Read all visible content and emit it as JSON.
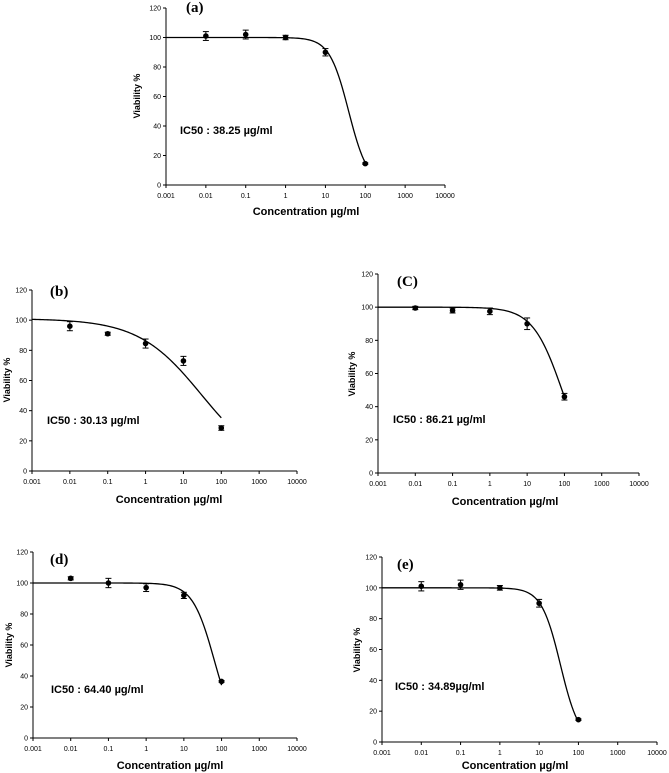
{
  "chart_data": [
    {
      "type": "scatter",
      "panel_label": "(a)",
      "xlabel": "Concentration µg/ml",
      "ylabel": "Viability %",
      "x_scale": "log",
      "xlim": [
        0.001,
        10000
      ],
      "ylim": [
        0,
        120
      ],
      "xticks": [
        "0.001",
        "0.01",
        "0.1",
        "1",
        "10",
        "100",
        "1000",
        "10000"
      ],
      "yticks": [
        "0",
        "20",
        "40",
        "60",
        "80",
        "100",
        "120"
      ],
      "annotation": "IC50 : 38.25 µg/ml",
      "points": [
        {
          "x": 0.01,
          "y": 101,
          "err": 3
        },
        {
          "x": 0.1,
          "y": 102,
          "err": 3
        },
        {
          "x": 1,
          "y": 100,
          "err": 1.5
        },
        {
          "x": 10,
          "y": 90,
          "err": 2.5
        },
        {
          "x": 100,
          "y": 14.5,
          "err": 0.5
        }
      ],
      "fit": {
        "top": 100,
        "bottom": 0,
        "ec50": 38.25,
        "hill": 1.8
      }
    },
    {
      "type": "scatter",
      "panel_label": "(b)",
      "xlabel": "Concentration µg/ml",
      "ylabel": "Viability %",
      "x_scale": "log",
      "xlim": [
        0.001,
        10000
      ],
      "ylim": [
        0,
        120
      ],
      "xticks": [
        "0.001",
        "0.01",
        "0.1",
        "1",
        "10",
        "100",
        "1000",
        "10000"
      ],
      "yticks": [
        "0",
        "20",
        "40",
        "60",
        "80",
        "100",
        "120"
      ],
      "annotation": "IC50 : 30.13 µg/ml",
      "points": [
        {
          "x": 0.01,
          "y": 96,
          "err": 3
        },
        {
          "x": 0.1,
          "y": 91,
          "err": 1
        },
        {
          "x": 1,
          "y": 84.5,
          "err": 3
        },
        {
          "x": 10,
          "y": 73,
          "err": 3
        },
        {
          "x": 100,
          "y": 28.5,
          "err": 1.5
        }
      ],
      "fit": {
        "top": 101,
        "bottom": 0,
        "ec50": 30.13,
        "hill": 0.52
      }
    },
    {
      "type": "scatter",
      "panel_label": "(C)",
      "xlabel": "Concentration µg/ml",
      "ylabel": "Viability %",
      "x_scale": "log",
      "xlim": [
        0.001,
        10000
      ],
      "ylim": [
        0,
        120
      ],
      "xticks": [
        "0.001",
        "0.01",
        "0.1",
        "1",
        "10",
        "100",
        "1000",
        "10000"
      ],
      "yticks": [
        "0",
        "20",
        "40",
        "60",
        "80",
        "100",
        "120"
      ],
      "annotation": "IC50 : 86.21 µg/ml",
      "points": [
        {
          "x": 0.01,
          "y": 99.5,
          "err": 1
        },
        {
          "x": 0.1,
          "y": 98,
          "err": 1.5
        },
        {
          "x": 1,
          "y": 97.5,
          "err": 2
        },
        {
          "x": 10,
          "y": 90,
          "err": 3.5
        },
        {
          "x": 100,
          "y": 46,
          "err": 2
        }
      ],
      "fit": {
        "top": 100,
        "bottom": 0,
        "ec50": 86.21,
        "hill": 1.1
      }
    },
    {
      "type": "scatter",
      "panel_label": "(d)",
      "xlabel": "Concentration µg/ml",
      "ylabel": "Viability %",
      "x_scale": "log",
      "xlim": [
        0.001,
        10000
      ],
      "ylim": [
        0,
        120
      ],
      "xticks": [
        "0.001",
        "0.01",
        "0.1",
        "1",
        "10",
        "100",
        "1000",
        "10000"
      ],
      "yticks": [
        "0",
        "20",
        "40",
        "60",
        "80",
        "100",
        "120"
      ],
      "annotation": "IC50 : 64.40 µg/ml",
      "points": [
        {
          "x": 0.01,
          "y": 103,
          "err": 1
        },
        {
          "x": 0.1,
          "y": 100,
          "err": 3
        },
        {
          "x": 1,
          "y": 97,
          "err": 2.5
        },
        {
          "x": 10,
          "y": 92,
          "err": 2
        },
        {
          "x": 100,
          "y": 36.5,
          "err": 0.5
        }
      ],
      "fit": {
        "top": 100,
        "bottom": 0,
        "ec50": 64.4,
        "hill": 1.5
      }
    },
    {
      "type": "scatter",
      "panel_label": "(e)",
      "xlabel": "Concentration µg/ml",
      "ylabel": "Viability %",
      "x_scale": "log",
      "xlim": [
        0.001,
        10000
      ],
      "ylim": [
        0,
        120
      ],
      "xticks": [
        "0.001",
        "0.01",
        "0.1",
        "1",
        "10",
        "100",
        "1000",
        "10000"
      ],
      "yticks": [
        "0",
        "20",
        "40",
        "60",
        "80",
        "100",
        "120"
      ],
      "annotation": "IC50 : 34.89µg/ml",
      "points": [
        {
          "x": 0.01,
          "y": 101,
          "err": 3
        },
        {
          "x": 0.1,
          "y": 102,
          "err": 3
        },
        {
          "x": 1,
          "y": 100,
          "err": 1.5
        },
        {
          "x": 10,
          "y": 90,
          "err": 2.5
        },
        {
          "x": 100,
          "y": 14.5,
          "err": 0.5
        }
      ],
      "fit": {
        "top": 100,
        "bottom": 0,
        "ec50": 34.89,
        "hill": 1.8
      }
    }
  ]
}
